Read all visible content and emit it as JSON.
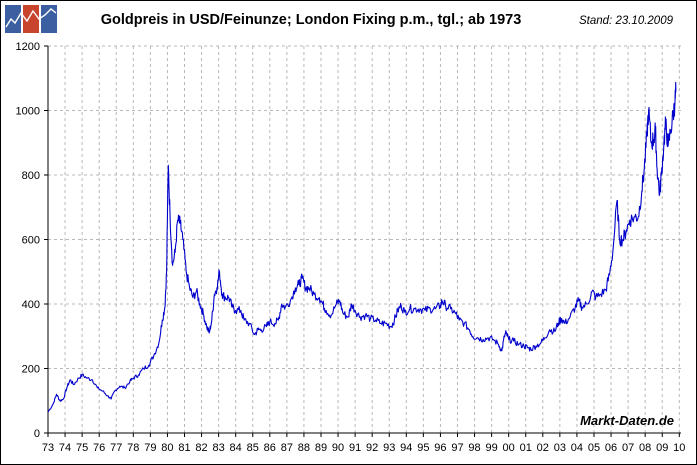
{
  "header": {
    "title": "Goldpreis in USD/Feinunze; London Fixing p.m., tgl.; ab 1973",
    "stand": "Stand: 23.10.2009",
    "logo_icon": "market-chart-logo-icon"
  },
  "chart_data": {
    "type": "line",
    "title": "Goldpreis in USD/Feinunze; London Fixing p.m., tgl.; ab 1973",
    "xlabel": "",
    "ylabel": "",
    "ylim": [
      0,
      1200
    ],
    "xlim": [
      1973,
      2009.85
    ],
    "y_ticks": [
      0,
      200,
      400,
      600,
      800,
      1000,
      1200
    ],
    "x_tick_labels": [
      "73",
      "74",
      "75",
      "76",
      "77",
      "78",
      "79",
      "80",
      "81",
      "82",
      "83",
      "84",
      "85",
      "86",
      "87",
      "88",
      "89",
      "90",
      "91",
      "92",
      "93",
      "94",
      "95",
      "96",
      "97",
      "98",
      "99",
      "00",
      "01",
      "02",
      "03",
      "04",
      "05",
      "06",
      "07",
      "08",
      "09",
      "10"
    ],
    "grid": true,
    "watermark": "Markt-Daten.de",
    "line_color": "#0000CC",
    "series": [
      {
        "values": [
          [
            1973.0,
            65
          ],
          [
            1973.3,
            90
          ],
          [
            1973.5,
            120
          ],
          [
            1973.7,
            100
          ],
          [
            1973.9,
            105
          ],
          [
            1974.1,
            140
          ],
          [
            1974.3,
            165
          ],
          [
            1974.5,
            150
          ],
          [
            1974.8,
            170
          ],
          [
            1975.0,
            180
          ],
          [
            1975.3,
            170
          ],
          [
            1975.6,
            165
          ],
          [
            1975.9,
            140
          ],
          [
            1976.2,
            130
          ],
          [
            1976.5,
            115
          ],
          [
            1976.7,
            105
          ],
          [
            1976.9,
            130
          ],
          [
            1977.2,
            145
          ],
          [
            1977.5,
            140
          ],
          [
            1977.8,
            160
          ],
          [
            1978.0,
            170
          ],
          [
            1978.3,
            180
          ],
          [
            1978.6,
            200
          ],
          [
            1978.9,
            210
          ],
          [
            1979.2,
            240
          ],
          [
            1979.5,
            280
          ],
          [
            1979.7,
            350
          ],
          [
            1979.85,
            390
          ],
          [
            1979.95,
            500
          ],
          [
            1980.05,
            830
          ],
          [
            1980.15,
            680
          ],
          [
            1980.3,
            520
          ],
          [
            1980.45,
            560
          ],
          [
            1980.6,
            660
          ],
          [
            1980.75,
            650
          ],
          [
            1980.9,
            600
          ],
          [
            1981.1,
            500
          ],
          [
            1981.3,
            450
          ],
          [
            1981.5,
            420
          ],
          [
            1981.7,
            440
          ],
          [
            1981.9,
            400
          ],
          [
            1982.1,
            370
          ],
          [
            1982.3,
            330
          ],
          [
            1982.45,
            310
          ],
          [
            1982.6,
            350
          ],
          [
            1982.75,
            430
          ],
          [
            1982.9,
            450
          ],
          [
            1983.05,
            500
          ],
          [
            1983.2,
            430
          ],
          [
            1983.4,
            420
          ],
          [
            1983.6,
            420
          ],
          [
            1983.8,
            390
          ],
          [
            1984.0,
            380
          ],
          [
            1984.3,
            380
          ],
          [
            1984.5,
            350
          ],
          [
            1984.8,
            340
          ],
          [
            1985.1,
            305
          ],
          [
            1985.3,
            320
          ],
          [
            1985.5,
            320
          ],
          [
            1985.8,
            330
          ],
          [
            1986.0,
            345
          ],
          [
            1986.3,
            340
          ],
          [
            1986.5,
            350
          ],
          [
            1986.7,
            400
          ],
          [
            1986.9,
            390
          ],
          [
            1987.2,
            410
          ],
          [
            1987.5,
            450
          ],
          [
            1987.7,
            460
          ],
          [
            1987.9,
            480
          ],
          [
            1988.1,
            450
          ],
          [
            1988.3,
            450
          ],
          [
            1988.6,
            430
          ],
          [
            1988.9,
            420
          ],
          [
            1989.1,
            400
          ],
          [
            1989.3,
            380
          ],
          [
            1989.6,
            365
          ],
          [
            1989.9,
            400
          ],
          [
            1990.1,
            410
          ],
          [
            1990.3,
            370
          ],
          [
            1990.6,
            360
          ],
          [
            1990.8,
            400
          ],
          [
            1991.0,
            380
          ],
          [
            1991.3,
            360
          ],
          [
            1991.6,
            365
          ],
          [
            1991.9,
            355
          ],
          [
            1992.2,
            350
          ],
          [
            1992.5,
            340
          ],
          [
            1992.8,
            340
          ],
          [
            1993.1,
            330
          ],
          [
            1993.3,
            350
          ],
          [
            1993.5,
            380
          ],
          [
            1993.7,
            395
          ],
          [
            1993.9,
            375
          ],
          [
            1994.2,
            385
          ],
          [
            1994.5,
            385
          ],
          [
            1994.8,
            385
          ],
          [
            1995.1,
            380
          ],
          [
            1995.4,
            385
          ],
          [
            1995.7,
            385
          ],
          [
            1996.0,
            395
          ],
          [
            1996.1,
            410
          ],
          [
            1996.3,
            395
          ],
          [
            1996.6,
            385
          ],
          [
            1996.9,
            370
          ],
          [
            1997.1,
            350
          ],
          [
            1997.4,
            340
          ],
          [
            1997.7,
            320
          ],
          [
            1997.9,
            300
          ],
          [
            1998.2,
            295
          ],
          [
            1998.5,
            290
          ],
          [
            1998.8,
            295
          ],
          [
            1999.1,
            290
          ],
          [
            1999.4,
            275
          ],
          [
            1999.6,
            255
          ],
          [
            1999.75,
            300
          ],
          [
            1999.85,
            310
          ],
          [
            2000.0,
            290
          ],
          [
            2000.3,
            285
          ],
          [
            2000.6,
            275
          ],
          [
            2000.9,
            270
          ],
          [
            2001.1,
            265
          ],
          [
            2001.3,
            260
          ],
          [
            2001.6,
            270
          ],
          [
            2001.9,
            280
          ],
          [
            2002.1,
            295
          ],
          [
            2002.4,
            320
          ],
          [
            2002.7,
            315
          ],
          [
            2002.9,
            340
          ],
          [
            2003.1,
            355
          ],
          [
            2003.3,
            340
          ],
          [
            2003.6,
            360
          ],
          [
            2003.9,
            390
          ],
          [
            2004.1,
            410
          ],
          [
            2004.3,
            390
          ],
          [
            2004.6,
            400
          ],
          [
            2004.9,
            440
          ],
          [
            2005.1,
            420
          ],
          [
            2005.4,
            430
          ],
          [
            2005.7,
            445
          ],
          [
            2005.9,
            490
          ],
          [
            2006.1,
            560
          ],
          [
            2006.35,
            720
          ],
          [
            2006.5,
            600
          ],
          [
            2006.7,
            600
          ],
          [
            2006.9,
            630
          ],
          [
            2007.1,
            660
          ],
          [
            2007.4,
            670
          ],
          [
            2007.6,
            670
          ],
          [
            2007.8,
            750
          ],
          [
            2007.95,
            820
          ],
          [
            2008.1,
            920
          ],
          [
            2008.2,
            1000
          ],
          [
            2008.35,
            900
          ],
          [
            2008.5,
            910
          ],
          [
            2008.6,
            940
          ],
          [
            2008.7,
            820
          ],
          [
            2008.85,
            740
          ],
          [
            2008.95,
            800
          ],
          [
            2009.1,
            900
          ],
          [
            2009.2,
            960
          ],
          [
            2009.35,
            890
          ],
          [
            2009.5,
            940
          ],
          [
            2009.65,
            990
          ],
          [
            2009.75,
            1030
          ],
          [
            2009.8,
            1060
          ]
        ]
      }
    ]
  }
}
